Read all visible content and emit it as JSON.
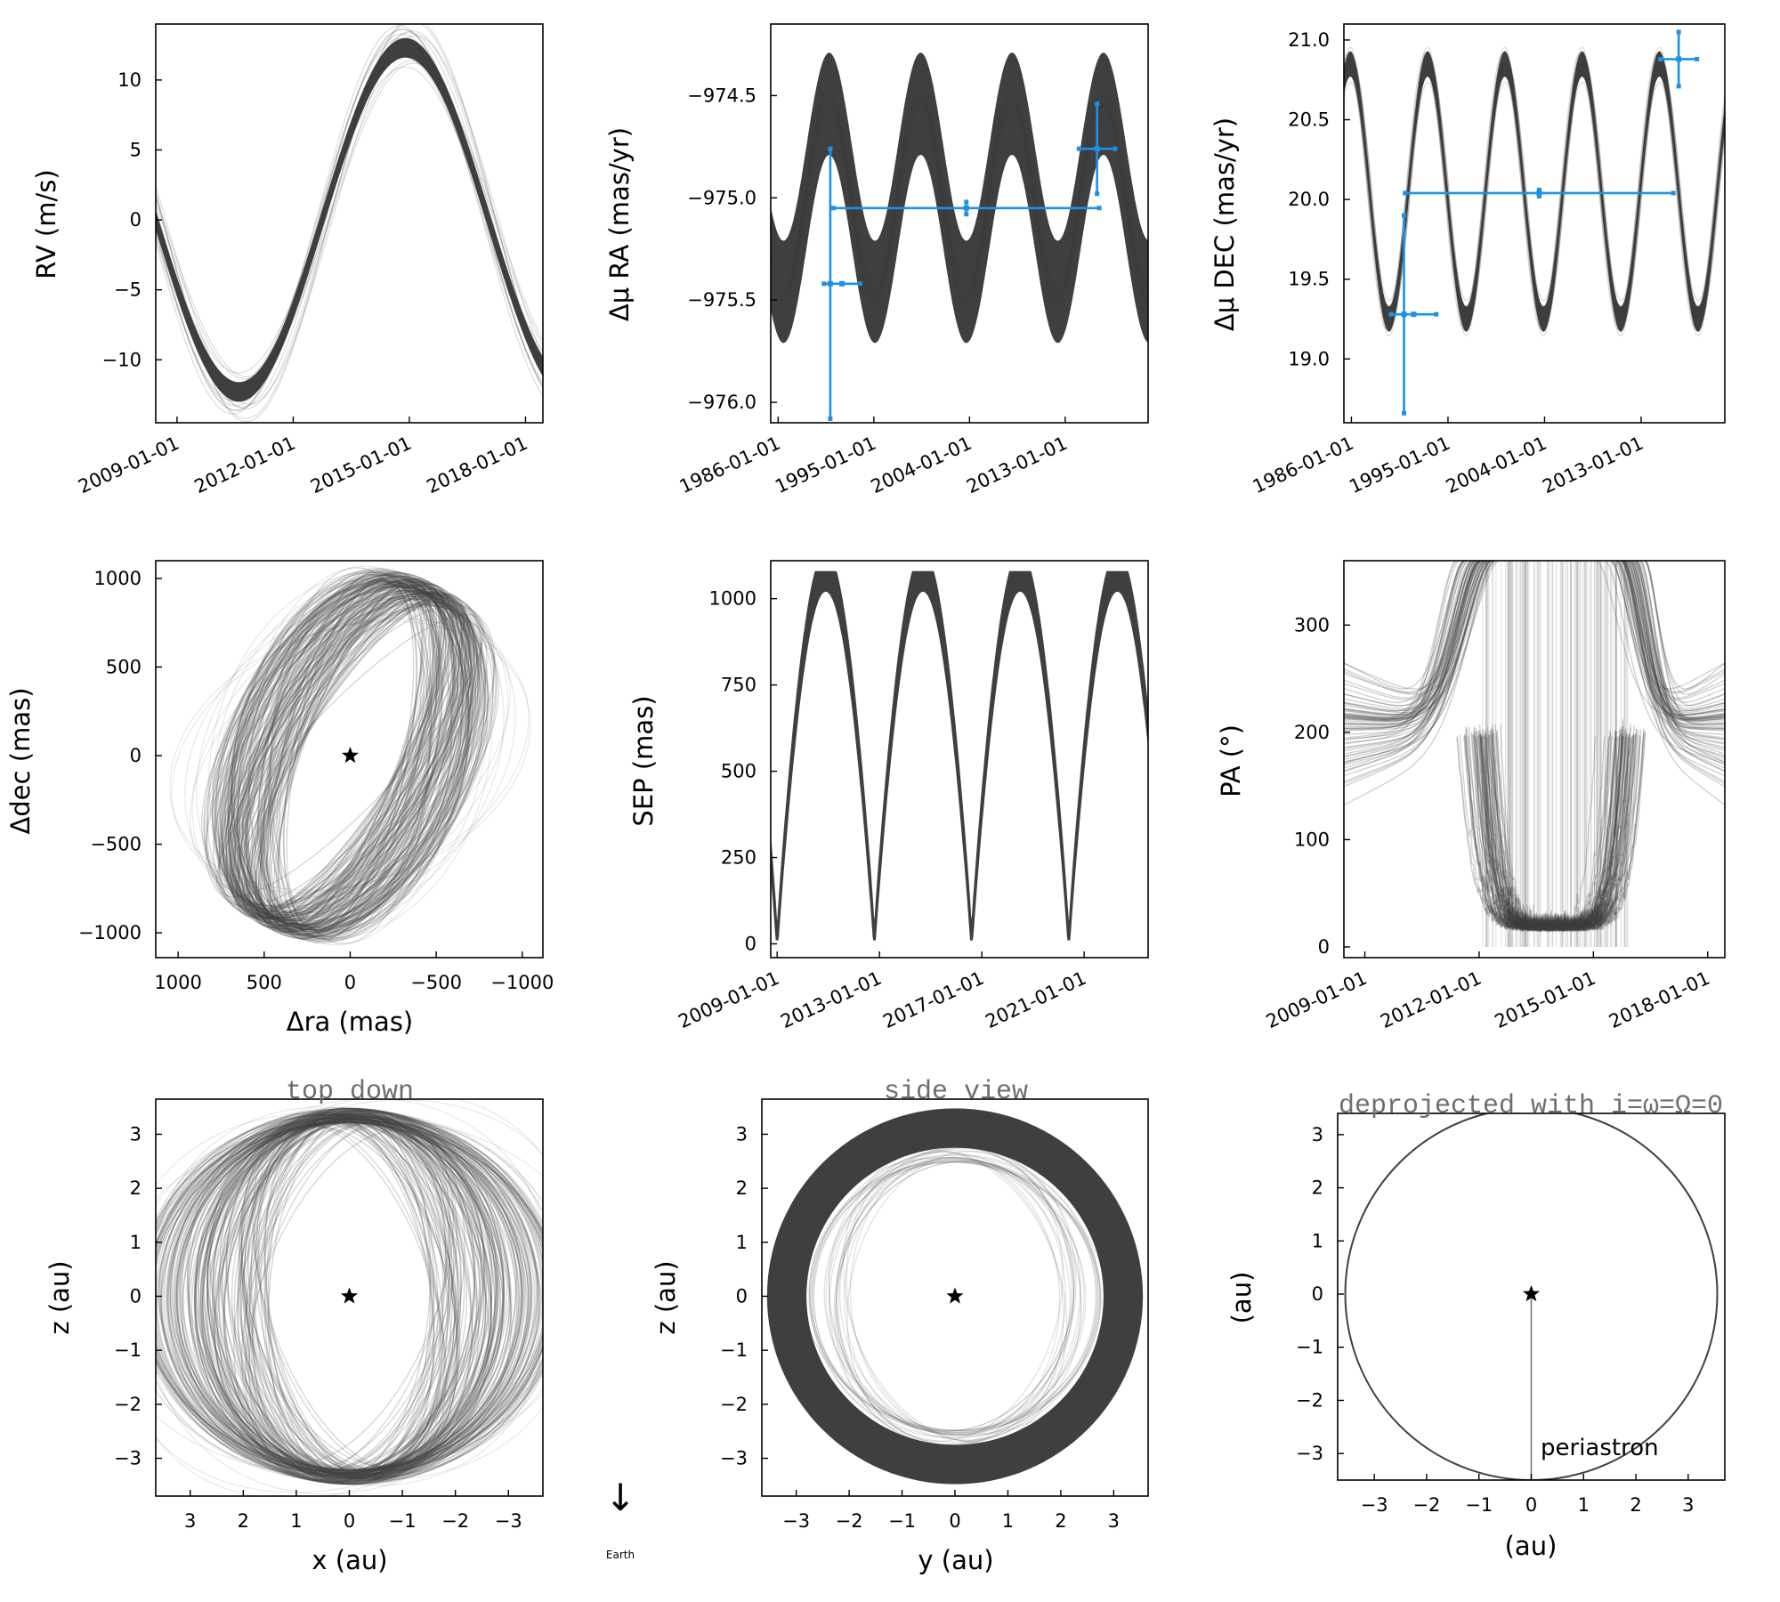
{
  "colors": {
    "orbit": "#3f3f3f",
    "data": "#1e90e6",
    "frame": "#000000",
    "title": "#6e6e6e"
  },
  "earth_indicator": {
    "arrow": "↓",
    "label": "Earth"
  },
  "chart_data": [
    {
      "id": "rv",
      "type": "line",
      "xlabel": "",
      "ylabel": "RV (m/s)",
      "x_ticks": [
        "2009-01-01",
        "2012-01-01",
        "2015-01-01",
        "2018-01-01"
      ],
      "x_tick_years": [
        2009,
        2012,
        2015,
        2018
      ],
      "xlim": [
        2008.45,
        2018.45
      ],
      "y_ticks": [
        -10,
        -5,
        0,
        5,
        10
      ],
      "ylim": [
        -14.5,
        14
      ],
      "model": {
        "kind": "sine",
        "amplitude": 12.3,
        "period_years": 8.6,
        "peak_year": 2014.9,
        "band_halfwidth": 0.7
      },
      "error_bars": []
    },
    {
      "id": "pmra",
      "type": "line",
      "xlabel": "",
      "ylabel": "Δμ RA (mas/yr)",
      "x_ticks": [
        "1986-01-01",
        "1995-01-01",
        "2004-01-01",
        "2013-01-01"
      ],
      "x_tick_years": [
        1986,
        1995,
        2004,
        2013
      ],
      "xlim": [
        1985.3,
        2020.8
      ],
      "y_ticks": [
        -976.0,
        -975.5,
        -975.0,
        -974.5
      ],
      "ylim": [
        -976.1,
        -974.15
      ],
      "model": {
        "kind": "sine",
        "center": -975.0,
        "amplitude": 0.46,
        "period_years": 8.6,
        "peak_year": 1990.8,
        "band_halfwidth": 0.25
      },
      "error_bars": [
        {
          "x": 1992.0,
          "y": -975.42,
          "xerr": 1.7,
          "yerr": 0.0
        },
        {
          "x": 1990.9,
          "y": -975.42,
          "xerr": 0.0,
          "yerr": 0.66
        },
        {
          "x": 2003.7,
          "y": -975.05,
          "xerr": 12.5,
          "yerr": 0.03
        },
        {
          "x": 2016.0,
          "y": -974.76,
          "xerr": 1.7,
          "yerr": 0.22
        }
      ]
    },
    {
      "id": "pmdec",
      "type": "line",
      "xlabel": "",
      "ylabel": "Δμ DEC (mas/yr)",
      "x_ticks": [
        "1986-01-01",
        "1995-01-01",
        "2004-01-01",
        "2013-01-01"
      ],
      "x_tick_years": [
        1986,
        1995,
        2004,
        2013
      ],
      "xlim": [
        1985.3,
        2020.8
      ],
      "y_ticks": [
        19.0,
        19.5,
        20.0,
        20.5,
        21.0
      ],
      "ylim": [
        18.6,
        21.1
      ],
      "model": {
        "kind": "sine",
        "center": 20.05,
        "amplitude": 0.8,
        "period_years": 7.2,
        "peak_year": 1985.9,
        "band_halfwidth": 0.08
      },
      "error_bars": [
        {
          "x": 1991.8,
          "y": 19.28,
          "xerr": 2.1,
          "yerr": 0.0
        },
        {
          "x": 1990.9,
          "y": 19.28,
          "xerr": 0.0,
          "yerr": 0.62
        },
        {
          "x": 2003.5,
          "y": 20.04,
          "xerr": 12.5,
          "yerr": 0.02
        },
        {
          "x": 2016.5,
          "y": 20.88,
          "xerr": 1.7,
          "yerr": 0.17
        }
      ]
    },
    {
      "id": "radec",
      "type": "scatter",
      "xlabel": "Δra (mas)",
      "ylabel": "Δdec (mas)",
      "x_ticks": [
        1000,
        500,
        0,
        -500,
        -1000
      ],
      "xlim": [
        1130,
        -1120
      ],
      "x_reversed": true,
      "y_ticks": [
        -1000,
        -500,
        0,
        500,
        1000
      ],
      "ylim": [
        -1140,
        1100
      ],
      "model": {
        "kind": "ellipse_family",
        "semi_major": 1070,
        "semi_minor": 480,
        "tilt_deg": 65
      },
      "star": {
        "x": 0,
        "y": 0
      }
    },
    {
      "id": "sep",
      "type": "line",
      "xlabel": "",
      "ylabel": "SEP (mas)",
      "x_ticks": [
        "2009-01-01",
        "2013-01-01",
        "2017-01-01",
        "2021-01-01"
      ],
      "x_tick_years": [
        2009,
        2013,
        2017,
        2021
      ],
      "xlim": [
        2008.75,
        2023.5
      ],
      "y_ticks": [
        0,
        250,
        500,
        750,
        1000
      ],
      "ylim": [
        -40,
        1110
      ],
      "model": {
        "kind": "sep_cycle",
        "max": 1080,
        "period_years": 3.8,
        "phase_year": 2009.0
      }
    },
    {
      "id": "pa",
      "type": "line",
      "xlabel": "",
      "ylabel": "PA (°)",
      "x_ticks": [
        "2009-01-01",
        "2012-01-01",
        "2015-01-01",
        "2018-01-01"
      ],
      "x_tick_years": [
        2009,
        2012,
        2015,
        2018
      ],
      "xlim": [
        2008.45,
        2018.45
      ],
      "y_ticks": [
        0,
        100,
        200,
        300
      ],
      "ylim": [
        -10,
        360
      ],
      "model": {
        "kind": "pa_wrap",
        "center": 205,
        "wrap_start": 2012.0,
        "wrap_end": 2015.9
      }
    },
    {
      "id": "topdown",
      "type": "scatter",
      "title": "top down",
      "xlabel": "x (au)",
      "ylabel": "z (au)",
      "x_ticks": [
        3,
        2,
        1,
        0,
        -1,
        -2,
        -3
      ],
      "xlim": [
        3.65,
        -3.65
      ],
      "x_reversed": true,
      "y_ticks": [
        -3,
        -2,
        -1,
        0,
        1,
        2,
        3
      ],
      "ylim": [
        -3.7,
        3.65
      ],
      "model": {
        "kind": "ellipse_family",
        "semi_major": 3.45,
        "semi_minor": 2.7,
        "tilt_deg": 90
      },
      "star": {
        "x": 0,
        "y": 0
      }
    },
    {
      "id": "sideview",
      "type": "scatter",
      "title": "side view",
      "xlabel": "y (au)",
      "ylabel": "z (au)",
      "x_ticks": [
        -3,
        -2,
        -1,
        0,
        1,
        2,
        3
      ],
      "xlim": [
        -3.65,
        3.65
      ],
      "y_ticks": [
        -3,
        -2,
        -1,
        0,
        1,
        2,
        3
      ],
      "ylim": [
        -3.7,
        3.65
      ],
      "model": {
        "kind": "ring",
        "outer": 3.48,
        "inner": 2.75
      },
      "star": {
        "x": 0,
        "y": 0
      }
    },
    {
      "id": "deprojected",
      "type": "line",
      "title": "deprojected with i=ω=Ω=0",
      "xlabel": "(au)",
      "ylabel": "(au)",
      "x_ticks": [
        -3,
        -2,
        -1,
        0,
        1,
        2,
        3
      ],
      "xlim": [
        -3.7,
        3.7
      ],
      "y_ticks": [
        -3,
        -2,
        -1,
        0,
        1,
        2,
        3
      ],
      "ylim": [
        -3.5,
        3.4
      ],
      "model": {
        "kind": "circle",
        "radius": 3.5
      },
      "star": {
        "x": 0,
        "y": 0
      },
      "annotation": {
        "text": "periastron",
        "x": 0.15,
        "y": -2.9
      }
    }
  ]
}
